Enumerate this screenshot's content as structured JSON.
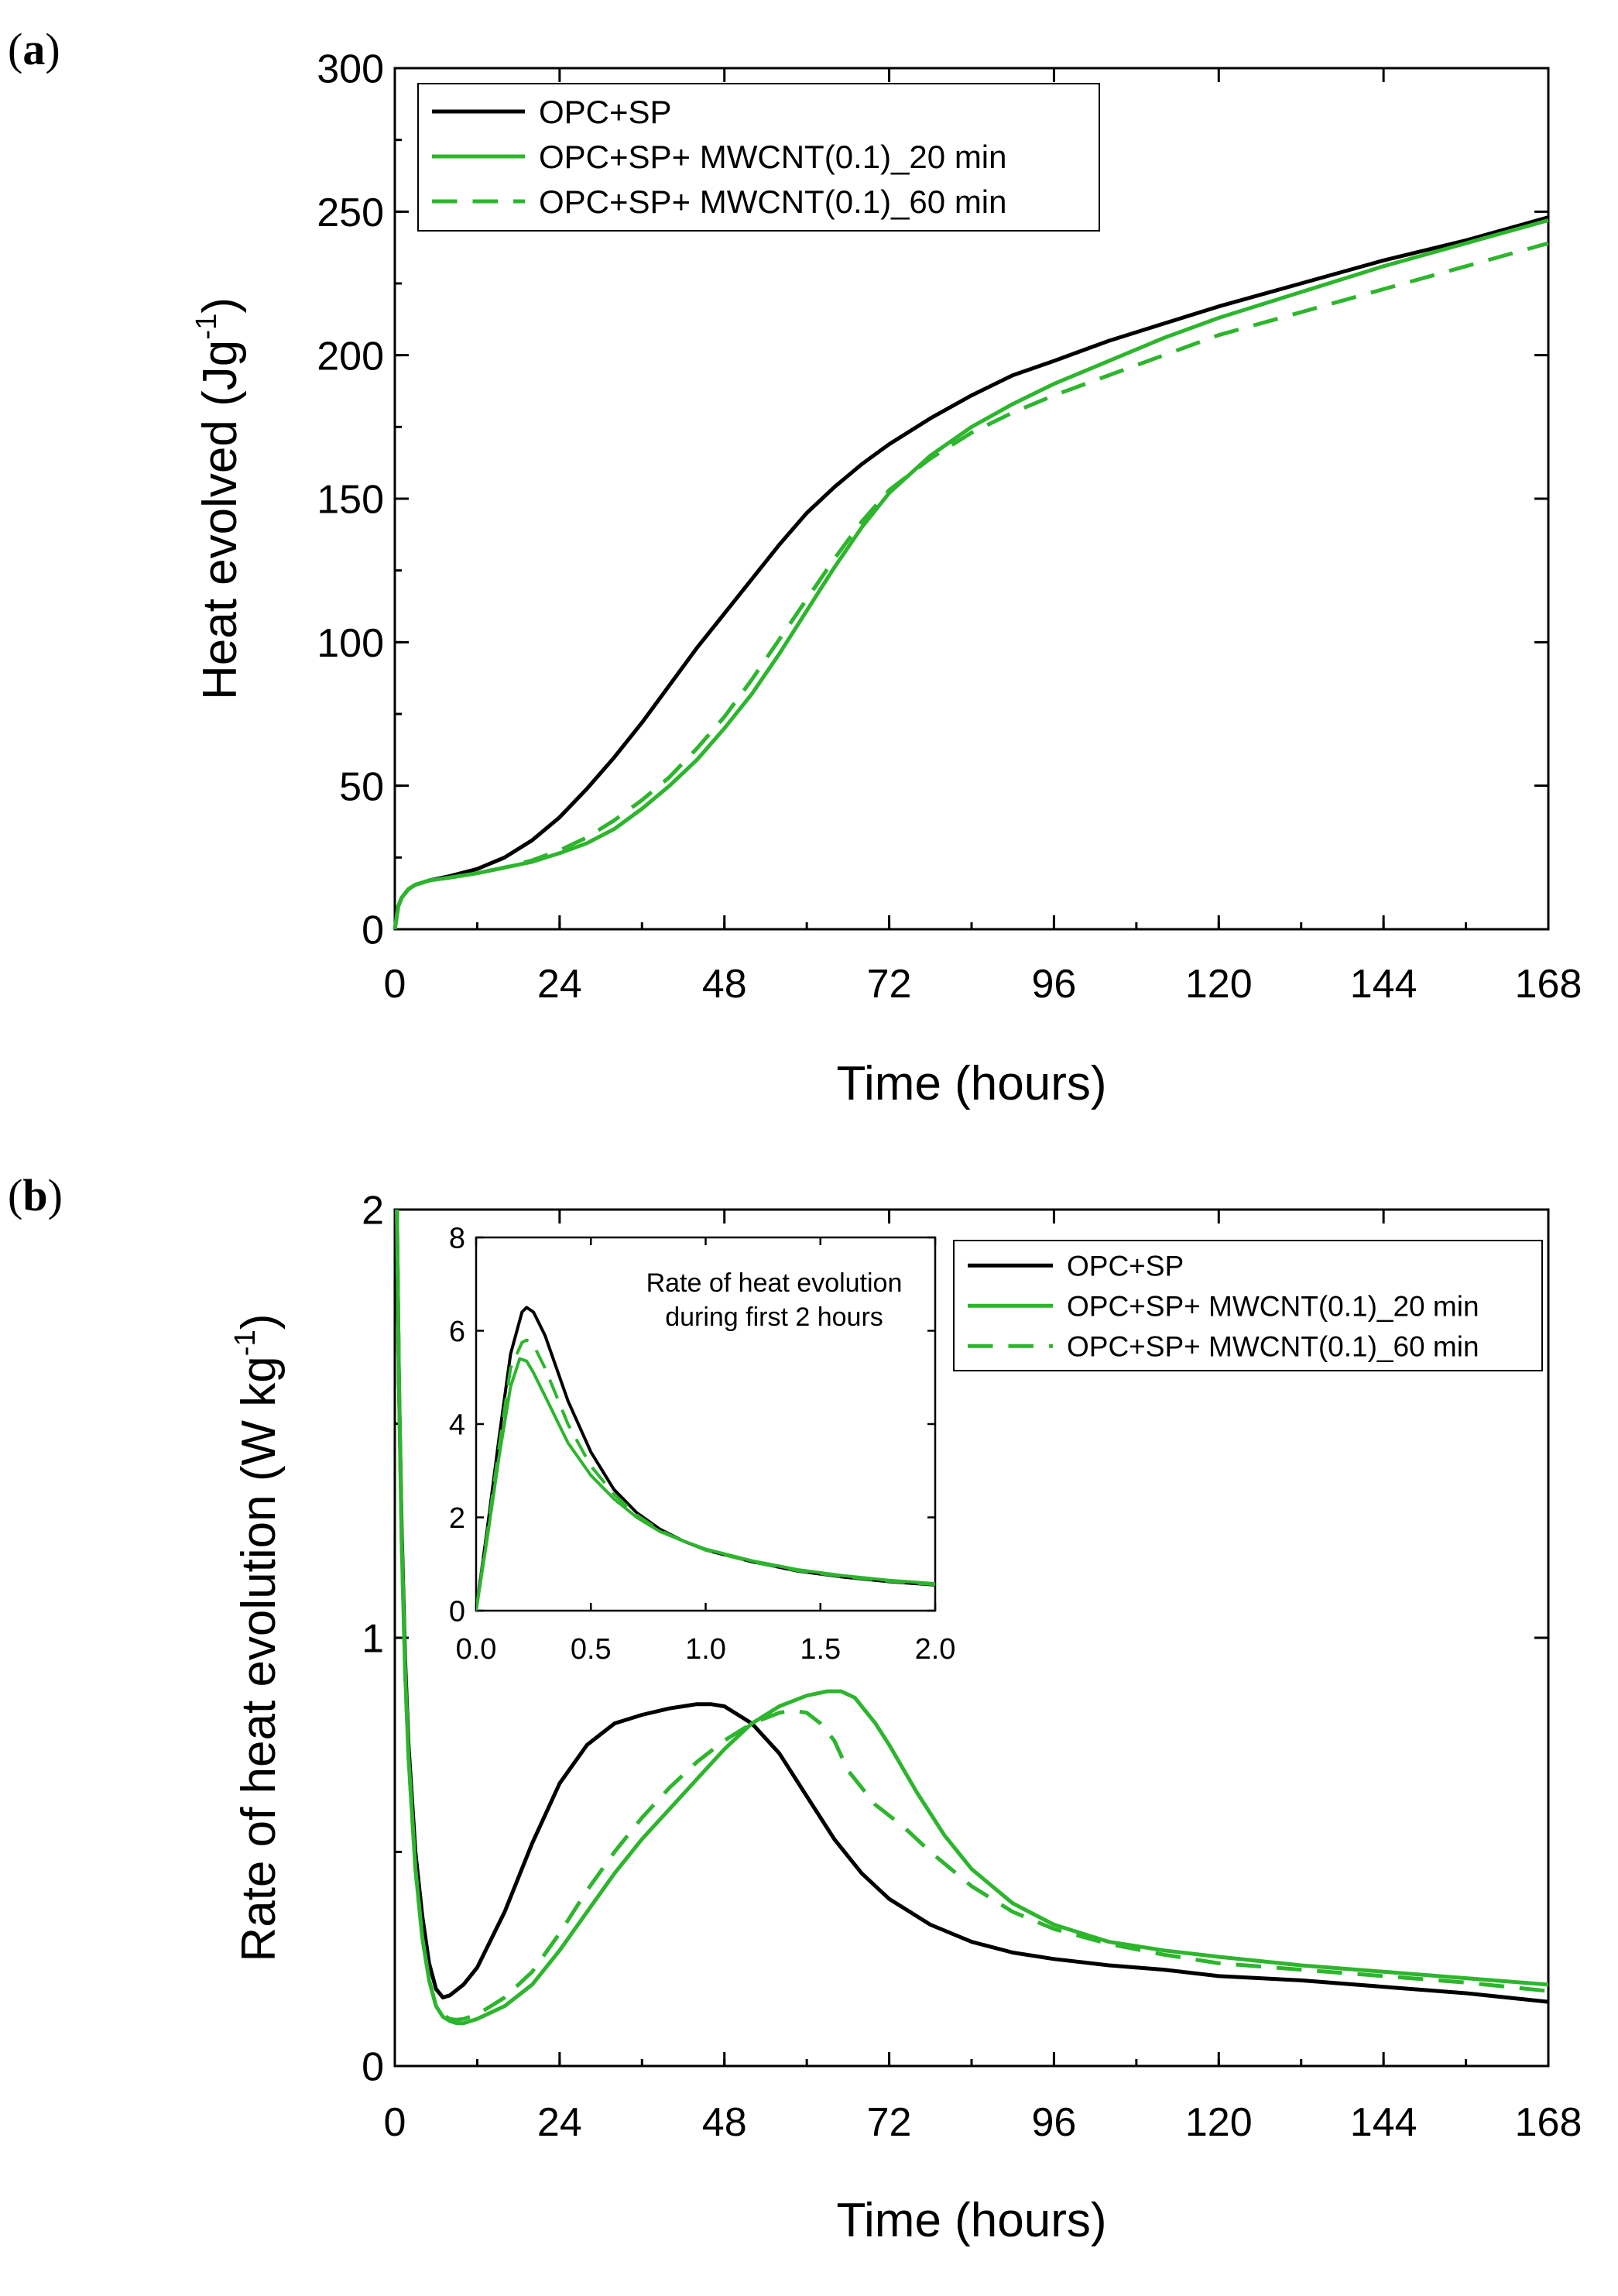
{
  "panel_a_label": "a",
  "panel_b_label": "b",
  "colors": {
    "opc_sp": "#000000",
    "mwcnt": "#2db52d"
  },
  "chart_data": [
    {
      "type": "line",
      "panel": "a",
      "title": "",
      "xlabel": "Time (hours)",
      "ylabel": "Heat evolved (Jg",
      "ylabel_sup": "-1",
      "ylabel_end": ")",
      "xlim": [
        0,
        168
      ],
      "ylim": [
        0,
        300
      ],
      "xticks": [
        0,
        24,
        48,
        72,
        96,
        120,
        144,
        168
      ],
      "yticks": [
        0,
        50,
        100,
        150,
        200,
        250,
        300
      ],
      "legend_position": "top-left",
      "series": [
        {
          "name": "OPC+SP",
          "color": "#000000",
          "dash": "solid",
          "x": [
            0,
            0.5,
            1,
            2,
            3,
            5,
            8,
            12,
            16,
            20,
            24,
            28,
            32,
            36,
            40,
            44,
            48,
            52,
            56,
            60,
            64,
            68,
            72,
            78,
            84,
            90,
            96,
            104,
            112,
            120,
            132,
            144,
            156,
            168
          ],
          "y": [
            0,
            8,
            11,
            14,
            15.5,
            17,
            18.5,
            21,
            25,
            31,
            39,
            49,
            60,
            72,
            85,
            98,
            110,
            122,
            134,
            145,
            154,
            162,
            169,
            178,
            186,
            193,
            198,
            205,
            211,
            217,
            225,
            233,
            240,
            248
          ]
        },
        {
          "name": "OPC+SP+ MWCNT(0.1)_20 min",
          "color": "#2db52d",
          "dash": "solid",
          "x": [
            0,
            0.5,
            1,
            2,
            3,
            5,
            8,
            12,
            16,
            20,
            24,
            28,
            32,
            36,
            40,
            44,
            48,
            52,
            56,
            60,
            64,
            68,
            72,
            78,
            84,
            90,
            96,
            104,
            112,
            120,
            132,
            144,
            156,
            168
          ],
          "y": [
            0,
            8,
            11,
            14,
            15.5,
            17,
            18,
            19.5,
            21.5,
            23.5,
            26.5,
            30,
            35,
            42,
            50,
            59,
            70,
            82,
            96,
            111,
            126,
            140,
            152,
            165,
            175,
            183,
            190,
            198,
            206,
            213,
            222,
            231,
            239,
            247
          ]
        },
        {
          "name": "OPC+SP+ MWCNT(0.1)_60 min",
          "color": "#2db52d",
          "dash": "dashed",
          "x": [
            0,
            0.5,
            1,
            2,
            3,
            5,
            8,
            12,
            16,
            20,
            24,
            28,
            32,
            36,
            40,
            44,
            48,
            52,
            56,
            60,
            64,
            68,
            72,
            78,
            84,
            90,
            96,
            104,
            112,
            120,
            132,
            144,
            156,
            168
          ],
          "y": [
            0,
            8,
            11,
            14,
            15.5,
            17,
            18,
            19.5,
            21.5,
            24,
            27.5,
            32,
            38,
            45,
            53,
            63,
            74,
            87,
            101,
            115,
            129,
            142,
            153,
            164,
            173,
            180,
            186,
            193,
            200,
            207,
            215,
            223,
            231,
            239
          ]
        }
      ]
    },
    {
      "type": "line",
      "panel": "b",
      "title": "",
      "xlabel": "Time (hours)",
      "ylabel": "Rate of heat evolution (W kg",
      "ylabel_sup": "-1",
      "ylabel_end": ")",
      "xlim": [
        0,
        168
      ],
      "ylim": [
        0,
        2
      ],
      "xticks": [
        0,
        24,
        48,
        72,
        96,
        120,
        144,
        168
      ],
      "yticks": [
        0,
        1,
        2
      ],
      "legend_position": "top-right",
      "series": [
        {
          "name": "OPC+SP",
          "color": "#000000",
          "dash": "solid",
          "x": [
            0.3,
            0.6,
            1,
            1.5,
            2,
            3,
            4,
            5,
            6,
            7,
            8,
            10,
            12,
            16,
            20,
            24,
            28,
            32,
            36,
            40,
            44,
            46,
            48,
            52,
            56,
            60,
            64,
            68,
            72,
            78,
            84,
            90,
            96,
            104,
            112,
            120,
            132,
            144,
            156,
            168
          ],
          "y": [
            2.0,
            1.6,
            1.25,
            0.95,
            0.75,
            0.5,
            0.35,
            0.24,
            0.18,
            0.16,
            0.165,
            0.19,
            0.23,
            0.36,
            0.52,
            0.66,
            0.75,
            0.8,
            0.82,
            0.835,
            0.845,
            0.845,
            0.84,
            0.8,
            0.73,
            0.63,
            0.53,
            0.45,
            0.39,
            0.33,
            0.29,
            0.265,
            0.25,
            0.235,
            0.225,
            0.21,
            0.2,
            0.185,
            0.17,
            0.15
          ]
        },
        {
          "name": "OPC+SP+ MWCNT(0.1)_20 min",
          "color": "#2db52d",
          "dash": "solid",
          "x": [
            0.3,
            0.6,
            1,
            1.5,
            2,
            3,
            4,
            5,
            6,
            7,
            8,
            9,
            10,
            12,
            16,
            20,
            24,
            28,
            32,
            36,
            40,
            44,
            48,
            52,
            56,
            60,
            63,
            65,
            67,
            70,
            72,
            76,
            80,
            84,
            90,
            96,
            104,
            112,
            120,
            132,
            144,
            156,
            168
          ],
          "y": [
            2.0,
            1.6,
            1.22,
            0.92,
            0.72,
            0.46,
            0.3,
            0.2,
            0.14,
            0.115,
            0.105,
            0.1,
            0.1,
            0.11,
            0.14,
            0.19,
            0.27,
            0.36,
            0.45,
            0.53,
            0.6,
            0.67,
            0.74,
            0.8,
            0.84,
            0.865,
            0.875,
            0.875,
            0.86,
            0.8,
            0.75,
            0.64,
            0.54,
            0.46,
            0.38,
            0.33,
            0.29,
            0.27,
            0.255,
            0.235,
            0.22,
            0.205,
            0.19
          ]
        },
        {
          "name": "OPC+SP+ MWCNT(0.1)_60 min",
          "color": "#2db52d",
          "dash": "dashed",
          "x": [
            0.3,
            0.6,
            1,
            1.5,
            2,
            3,
            4,
            5,
            6,
            7,
            8,
            9,
            10,
            12,
            16,
            20,
            24,
            28,
            32,
            36,
            40,
            44,
            48,
            52,
            56,
            58,
            60,
            62,
            64,
            66,
            70,
            74,
            78,
            84,
            90,
            96,
            104,
            112,
            120,
            132,
            144,
            156,
            168
          ],
          "y": [
            2.0,
            1.6,
            1.22,
            0.92,
            0.72,
            0.46,
            0.3,
            0.2,
            0.14,
            0.12,
            0.11,
            0.108,
            0.11,
            0.12,
            0.16,
            0.22,
            0.31,
            0.41,
            0.5,
            0.58,
            0.65,
            0.71,
            0.76,
            0.8,
            0.825,
            0.83,
            0.825,
            0.8,
            0.76,
            0.69,
            0.61,
            0.56,
            0.5,
            0.42,
            0.36,
            0.32,
            0.285,
            0.26,
            0.24,
            0.225,
            0.21,
            0.195,
            0.175
          ]
        }
      ]
    },
    {
      "type": "line",
      "panel": "b-inset",
      "title": "Rate of heat evolution during first 2 hours",
      "title_line1": "Rate of heat evolution",
      "title_line2": "during first 2 hours",
      "xlabel": "",
      "ylabel": "",
      "xlim": [
        0,
        2
      ],
      "ylim": [
        0,
        8
      ],
      "xticks": [
        "0.0",
        "0.5",
        "1.0",
        "1.5",
        "2.0"
      ],
      "yticks": [
        0,
        2,
        4,
        6,
        8
      ],
      "series": [
        {
          "name": "OPC+SP",
          "color": "#000000",
          "dash": "solid",
          "x": [
            0,
            0.05,
            0.1,
            0.15,
            0.2,
            0.22,
            0.25,
            0.3,
            0.35,
            0.4,
            0.5,
            0.6,
            0.7,
            0.8,
            0.9,
            1.0,
            1.2,
            1.4,
            1.6,
            1.8,
            2.0
          ],
          "y": [
            0,
            1.8,
            3.7,
            5.5,
            6.4,
            6.5,
            6.4,
            5.9,
            5.2,
            4.5,
            3.4,
            2.6,
            2.1,
            1.75,
            1.5,
            1.3,
            1.05,
            0.85,
            0.72,
            0.62,
            0.55
          ]
        },
        {
          "name": "OPC+SP+ MWCNT(0.1)_20 min",
          "color": "#2db52d",
          "dash": "solid",
          "x": [
            0,
            0.05,
            0.1,
            0.15,
            0.19,
            0.22,
            0.25,
            0.3,
            0.35,
            0.4,
            0.5,
            0.6,
            0.7,
            0.8,
            0.9,
            1.0,
            1.2,
            1.4,
            1.6,
            1.8,
            2.0
          ],
          "y": [
            0,
            1.6,
            3.3,
            4.8,
            5.4,
            5.35,
            5.1,
            4.6,
            4.1,
            3.6,
            2.9,
            2.4,
            2.0,
            1.7,
            1.5,
            1.32,
            1.07,
            0.88,
            0.75,
            0.65,
            0.58
          ]
        },
        {
          "name": "OPC+SP+ MWCNT(0.1)_60 min",
          "color": "#2db52d",
          "dash": "dashed",
          "x": [
            0,
            0.05,
            0.1,
            0.15,
            0.2,
            0.22,
            0.25,
            0.3,
            0.35,
            0.4,
            0.5,
            0.6,
            0.7,
            0.8,
            0.9,
            1.0,
            1.2,
            1.4,
            1.6,
            1.8,
            2.0
          ],
          "y": [
            0,
            1.7,
            3.5,
            5.2,
            5.75,
            5.8,
            5.7,
            5.2,
            4.6,
            4.0,
            3.1,
            2.5,
            2.05,
            1.72,
            1.5,
            1.3,
            1.05,
            0.86,
            0.73,
            0.63,
            0.56
          ]
        }
      ]
    }
  ]
}
